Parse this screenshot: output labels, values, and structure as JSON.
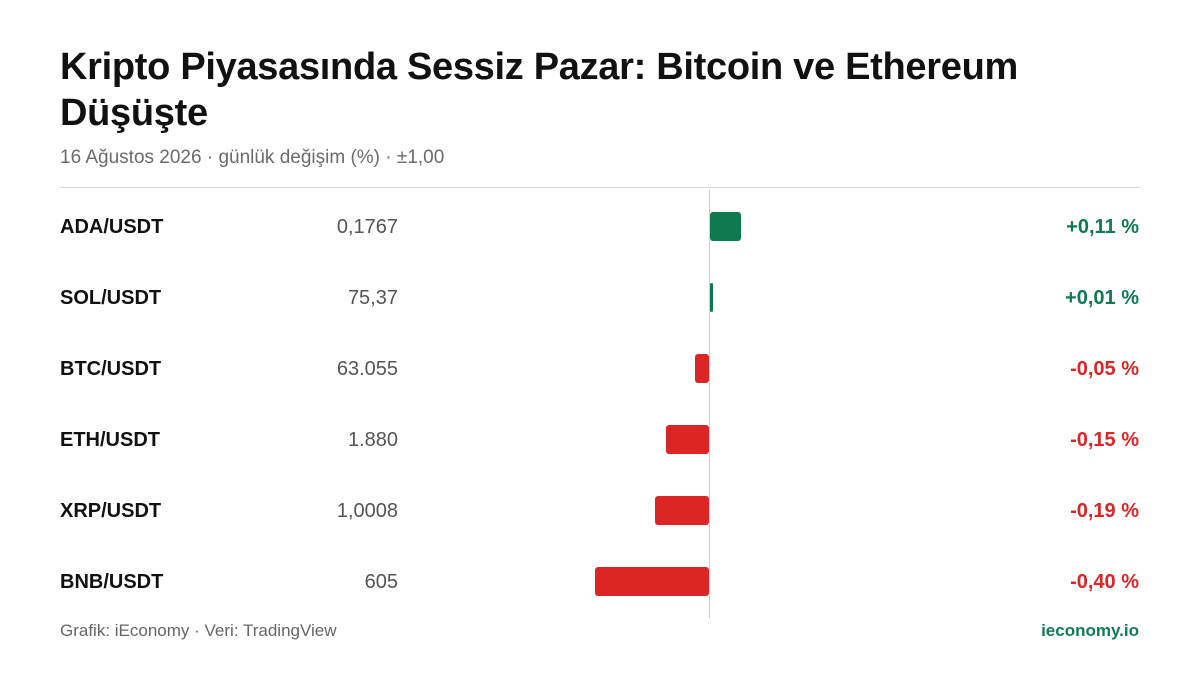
{
  "header": {
    "title": "Kripto Piyasasında Sessiz Pazar: Bitcoin ve Ethereum Düşüşte",
    "subtitle": "16 Ağustos 2026 · günlük değişim (%) · ±1,00"
  },
  "footer": {
    "credit": "Grafik: iEconomy · Veri: TradingView",
    "brand": "ieconomy.io"
  },
  "colors": {
    "positive": "#0f7a4f",
    "negative": "#dc2626"
  },
  "chart_data": {
    "type": "bar",
    "orientation": "horizontal",
    "xlim": [
      -1.0,
      1.0
    ],
    "grid": false,
    "categories": [
      "ADA/USDT",
      "SOL/USDT",
      "BTC/USDT",
      "ETH/USDT",
      "XRP/USDT",
      "BNB/USDT"
    ],
    "prices": [
      "0,1767",
      "75,37",
      "63.055",
      "1.880",
      "1,0008",
      "605"
    ],
    "values": [
      0.11,
      0.01,
      -0.05,
      -0.15,
      -0.19,
      -0.4
    ],
    "value_labels": [
      "+0,11 %",
      "+0,01 %",
      "-0,05 %",
      "-0,15 %",
      "-0,19 %",
      "-0,40 %"
    ]
  }
}
